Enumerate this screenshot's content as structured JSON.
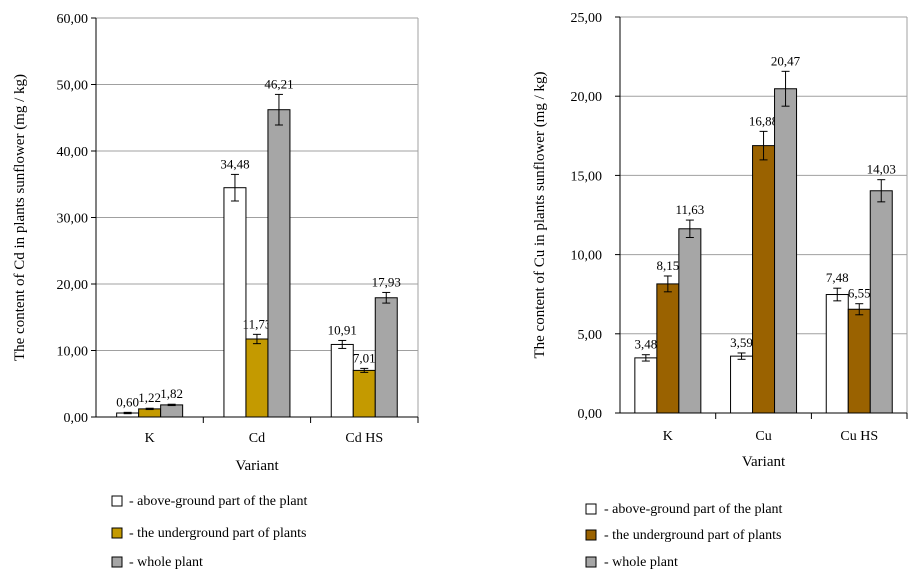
{
  "series_styles": [
    {
      "key": "above",
      "fill": "#ffffff",
      "stroke": "#000000"
    },
    {
      "key": "under",
      "fill_left": "#c49a00",
      "fill_right": "#9a6200",
      "stroke": "#000000"
    },
    {
      "key": "whole",
      "fill": "#a6a6a6",
      "stroke": "#000000"
    }
  ],
  "legend": [
    "- above-ground part of the plant",
    "- the underground part of plants",
    "- whole plant"
  ],
  "chart_data": [
    {
      "type": "bar",
      "ylabel": "The content of Cd in plants sunflower (mg / kg)",
      "xlabel": "Variant",
      "categories": [
        "K",
        "Cd",
        "Cd HS"
      ],
      "ylim": [
        0,
        60
      ],
      "yticks": [
        "0,00",
        "10,00",
        "20,00",
        "30,00",
        "40,00",
        "50,00",
        "60,00"
      ],
      "grid": true,
      "series": [
        {
          "values": [
            0.6,
            34.48,
            10.91
          ],
          "labels": [
            "0,60",
            "34,48",
            "10,91"
          ],
          "errors": [
            0.1,
            2.0,
            0.6
          ]
        },
        {
          "values": [
            1.22,
            11.73,
            7.01
          ],
          "labels": [
            "1,22",
            "11,73",
            "7,01"
          ],
          "errors": [
            0.1,
            0.7,
            0.3
          ]
        },
        {
          "values": [
            1.82,
            46.21,
            17.93
          ],
          "labels": [
            "1,82",
            "46,21",
            "17,93"
          ],
          "errors": [
            0.1,
            2.3,
            0.8
          ]
        }
      ]
    },
    {
      "type": "bar",
      "ylabel": "The content of Cu in plants sunflower (mg / kg)",
      "xlabel": "Variant",
      "categories": [
        "K",
        "Cu",
        "Cu HS"
      ],
      "ylim": [
        0,
        25
      ],
      "yticks": [
        "0,00",
        "5,00",
        "10,00",
        "15,00",
        "20,00",
        "25,00"
      ],
      "grid": true,
      "series": [
        {
          "values": [
            3.48,
            3.59,
            7.48
          ],
          "labels": [
            "3,48",
            "3,59",
            "7,48"
          ],
          "errors": [
            0.2,
            0.2,
            0.4
          ]
        },
        {
          "values": [
            8.15,
            16.88,
            6.55
          ],
          "labels": [
            "8,15",
            "16,88",
            "6,55"
          ],
          "errors": [
            0.5,
            0.9,
            0.35
          ]
        },
        {
          "values": [
            11.63,
            20.47,
            14.03
          ],
          "labels": [
            "11,63",
            "20,47",
            "14,03"
          ],
          "errors": [
            0.55,
            1.1,
            0.7
          ]
        }
      ]
    }
  ]
}
